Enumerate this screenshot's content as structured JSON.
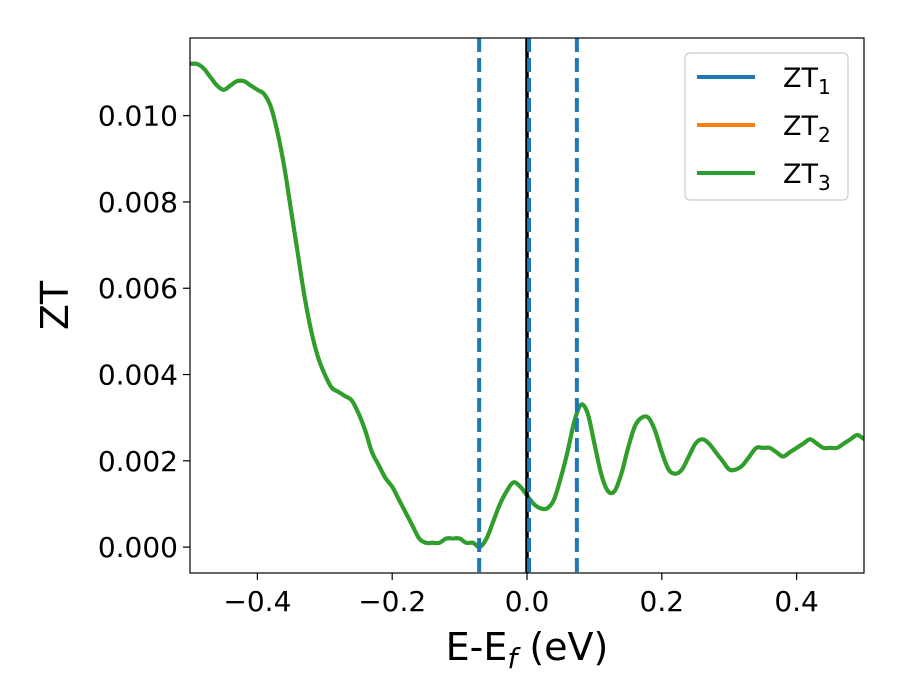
{
  "chart_data": {
    "type": "line",
    "title": "",
    "xlabel": "E-E",
    "xlabel_sub": "f",
    "xlabel_unit": "(eV)",
    "ylabel": "ZT",
    "xlim": [
      -0.5,
      0.5
    ],
    "ylim": [
      -0.0006,
      0.0118
    ],
    "xticks": [
      -0.4,
      -0.2,
      0.0,
      0.2,
      0.4
    ],
    "xtick_labels": [
      "−0.4",
      "−0.2",
      "0.0",
      "0.2",
      "0.4"
    ],
    "yticks": [
      0.0,
      0.002,
      0.004,
      0.006,
      0.008,
      0.01
    ],
    "ytick_labels": [
      "0.000",
      "0.002",
      "0.004",
      "0.006",
      "0.008",
      "0.010"
    ],
    "grid": false,
    "legend_position": "top-right",
    "vlines": [
      {
        "x": -0.071,
        "style": "dashed",
        "color": "#1f77b4"
      },
      {
        "x": 0.0,
        "style": "solid",
        "color": "#000000"
      },
      {
        "x": 0.003,
        "style": "dashed",
        "color": "#1f77b4"
      },
      {
        "x": 0.074,
        "style": "dashed",
        "color": "#1f77b4"
      }
    ],
    "x": [
      -0.5,
      -0.49,
      -0.48,
      -0.47,
      -0.46,
      -0.45,
      -0.44,
      -0.43,
      -0.42,
      -0.41,
      -0.4,
      -0.39,
      -0.38,
      -0.37,
      -0.36,
      -0.35,
      -0.34,
      -0.33,
      -0.32,
      -0.31,
      -0.3,
      -0.29,
      -0.28,
      -0.27,
      -0.26,
      -0.25,
      -0.24,
      -0.23,
      -0.22,
      -0.21,
      -0.2,
      -0.19,
      -0.18,
      -0.17,
      -0.16,
      -0.15,
      -0.14,
      -0.13,
      -0.12,
      -0.11,
      -0.1,
      -0.09,
      -0.08,
      -0.07,
      -0.06,
      -0.05,
      -0.04,
      -0.03,
      -0.02,
      -0.01,
      0.0,
      0.01,
      0.02,
      0.03,
      0.04,
      0.05,
      0.06,
      0.07,
      0.08,
      0.09,
      0.1,
      0.11,
      0.12,
      0.13,
      0.14,
      0.15,
      0.16,
      0.17,
      0.18,
      0.19,
      0.2,
      0.21,
      0.22,
      0.23,
      0.24,
      0.25,
      0.26,
      0.27,
      0.28,
      0.29,
      0.3,
      0.31,
      0.32,
      0.33,
      0.34,
      0.35,
      0.36,
      0.37,
      0.38,
      0.39,
      0.4,
      0.41,
      0.42,
      0.43,
      0.44,
      0.45,
      0.46,
      0.47,
      0.48,
      0.49,
      0.5
    ],
    "series": [
      {
        "name": "ZT",
        "sub": "1",
        "color": "#1f77b4",
        "values": null
      },
      {
        "name": "ZT",
        "sub": "2",
        "color": "#ff7f0e",
        "values": null
      },
      {
        "name": "ZT",
        "sub": "3",
        "color": "#2ca02c",
        "values": [
          0.0112,
          0.0112,
          0.0111,
          0.0109,
          0.0107,
          0.0106,
          0.0107,
          0.0108,
          0.0108,
          0.0107,
          0.0106,
          0.0105,
          0.0102,
          0.0096,
          0.0088,
          0.0078,
          0.0068,
          0.0058,
          0.005,
          0.0044,
          0.004,
          0.0037,
          0.0036,
          0.0035,
          0.0034,
          0.0031,
          0.0027,
          0.0022,
          0.0019,
          0.0016,
          0.0014,
          0.0011,
          0.0008,
          0.0005,
          0.0002,
          0.0001,
          0.0001,
          0.0001,
          0.0002,
          0.0002,
          0.0002,
          0.0001,
          0.0001,
          0.0,
          0.0002,
          0.0006,
          0.001,
          0.0013,
          0.0015,
          0.0014,
          0.0012,
          0.001,
          0.0009,
          0.0009,
          0.0011,
          0.0016,
          0.0022,
          0.0029,
          0.0033,
          0.0031,
          0.0024,
          0.0017,
          0.0013,
          0.0013,
          0.0017,
          0.0023,
          0.0028,
          0.003,
          0.003,
          0.0027,
          0.0022,
          0.0018,
          0.0017,
          0.0018,
          0.0021,
          0.0024,
          0.0025,
          0.0024,
          0.0022,
          0.002,
          0.0018,
          0.0018,
          0.0019,
          0.0021,
          0.0023,
          0.0023,
          0.0023,
          0.0022,
          0.0021,
          0.0022,
          0.0023,
          0.0024,
          0.0025,
          0.0024,
          0.0023,
          0.0023,
          0.0023,
          0.0024,
          0.0025,
          0.0026,
          0.0025
        ]
      }
    ]
  }
}
